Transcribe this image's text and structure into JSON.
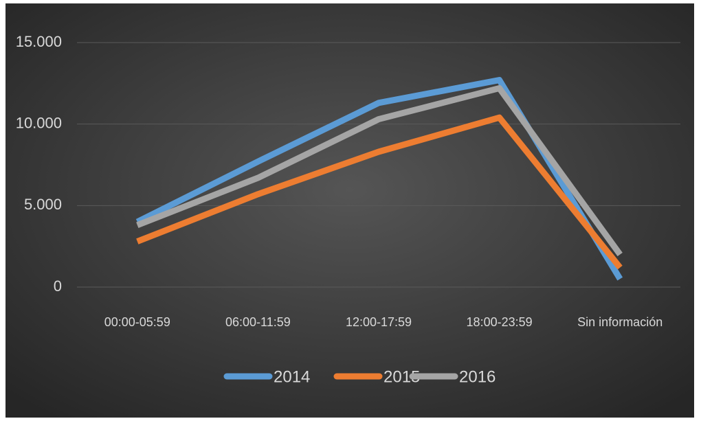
{
  "chart_data": {
    "type": "line",
    "categories": [
      "00:00-05:59",
      "06:00-11:59",
      "12:00-17:59",
      "18:00-23:59",
      "Sin información"
    ],
    "series": [
      {
        "name": "2014",
        "color": "#5b9bd5",
        "values": [
          4000,
          7700,
          11300,
          12700,
          500
        ]
      },
      {
        "name": "2015",
        "color": "#ed7d31",
        "values": [
          2800,
          5700,
          8300,
          10400,
          1200
        ]
      },
      {
        "name": "2016",
        "color": "#a5a5a5",
        "values": [
          3800,
          6700,
          10300,
          12200,
          2000
        ]
      }
    ],
    "ylim": [
      0,
      15000
    ],
    "yticks": [
      0,
      {
        "value": 5000,
        "label": "5.000"
      },
      {
        "value": 10000,
        "label": "10.000"
      },
      {
        "value": 15000,
        "label": "15.000"
      }
    ],
    "grid": true,
    "legend": "bottom"
  }
}
